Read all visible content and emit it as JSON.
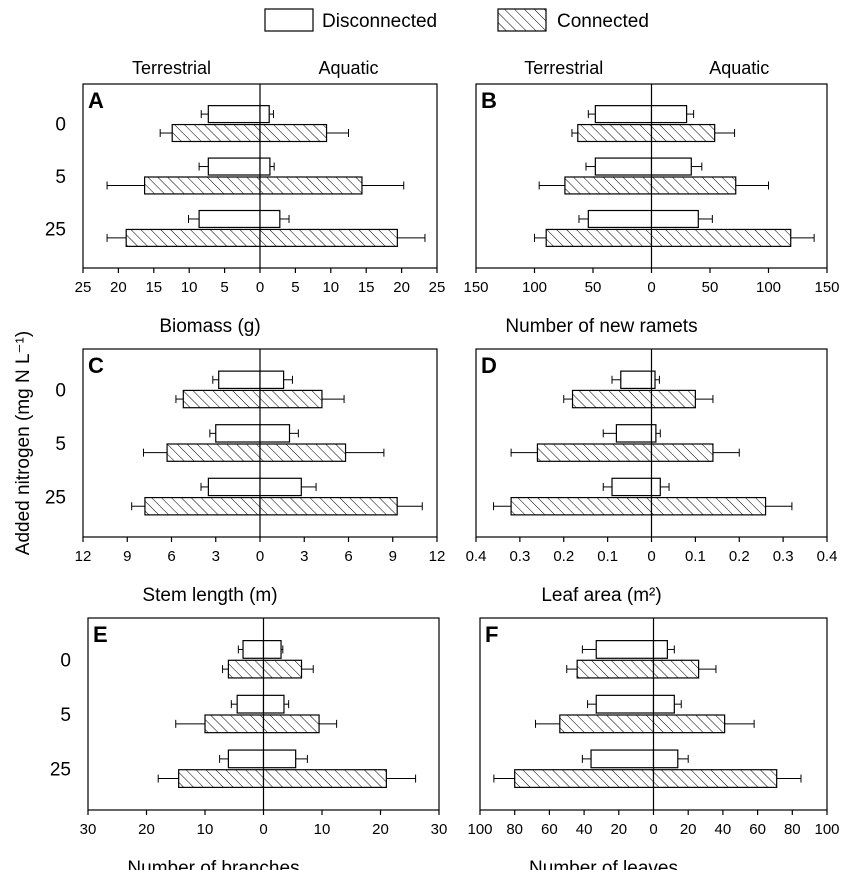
{
  "legend": {
    "disconnected": "Disconnected",
    "connected": "Connected"
  },
  "shared_ylabel": "Added nitrogen (mg N L⁻¹)",
  "sides": {
    "left": "Terrestrial",
    "right": "Aquatic"
  },
  "categories": [
    "0",
    "5",
    "25"
  ],
  "colors": {
    "disconnected_fill": "#ffffff",
    "connected_fill": "hatched",
    "stroke": "#000000"
  },
  "chart_data": [
    {
      "type": "bar",
      "panel": "A",
      "xlabel": "Biomass (g)",
      "xlim": [
        -25,
        25
      ],
      "ticks": [
        25,
        20,
        15,
        10,
        5,
        0,
        5,
        10,
        15,
        20,
        25
      ],
      "show_sides": true,
      "series": [
        {
          "name": "Disconnected",
          "left": [
            7.3,
            7.3,
            8.6
          ],
          "left_err": [
            1.0,
            1.3,
            1.5
          ],
          "right": [
            1.3,
            1.4,
            2.8
          ],
          "right_err": [
            0.6,
            0.6,
            1.3
          ]
        },
        {
          "name": "Connected",
          "left": [
            12.4,
            16.3,
            18.9
          ],
          "left_err": [
            1.7,
            5.3,
            2.7
          ],
          "right": [
            9.4,
            14.4,
            19.4
          ],
          "right_err": [
            3.1,
            5.9,
            3.9
          ]
        }
      ]
    },
    {
      "type": "bar",
      "panel": "B",
      "xlabel": "Number of new ramets",
      "xlim": [
        -150,
        150
      ],
      "ticks": [
        150,
        100,
        50,
        0,
        50,
        100,
        150
      ],
      "show_sides": true,
      "series": [
        {
          "name": "Disconnected",
          "left": [
            48,
            48,
            54
          ],
          "left_err": [
            6,
            8,
            8
          ],
          "right": [
            30,
            34,
            40
          ],
          "right_err": [
            6,
            9,
            12
          ]
        },
        {
          "name": "Connected",
          "left": [
            63,
            74,
            90
          ],
          "left_err": [
            5,
            22,
            10
          ],
          "right": [
            54,
            72,
            119
          ],
          "right_err": [
            17,
            28,
            20
          ]
        }
      ]
    },
    {
      "type": "bar",
      "panel": "C",
      "xlabel": "Stem length (m)",
      "xlim": [
        -12,
        12
      ],
      "ticks": [
        12,
        9,
        6,
        3,
        0,
        3,
        6,
        9,
        12
      ],
      "show_sides": false,
      "series": [
        {
          "name": "Disconnected",
          "left": [
            2.8,
            3.0,
            3.5
          ],
          "left_err": [
            0.4,
            0.4,
            0.5
          ],
          "right": [
            1.6,
            2.0,
            2.8
          ],
          "right_err": [
            0.6,
            0.6,
            1.0
          ]
        },
        {
          "name": "Connected",
          "left": [
            5.2,
            6.3,
            7.8
          ],
          "left_err": [
            0.5,
            1.6,
            0.9
          ],
          "right": [
            4.2,
            5.8,
            9.3
          ],
          "right_err": [
            1.5,
            2.6,
            1.7
          ]
        }
      ]
    },
    {
      "type": "bar",
      "panel": "D",
      "xlabel": "Leaf area (m²)",
      "xlim": [
        -0.4,
        0.4
      ],
      "ticks": [
        0.4,
        0.3,
        0.2,
        0.1,
        0,
        0.1,
        0.2,
        0.3,
        0.4
      ],
      "show_sides": false,
      "series": [
        {
          "name": "Disconnected",
          "left": [
            0.07,
            0.08,
            0.09
          ],
          "left_err": [
            0.02,
            0.03,
            0.02
          ],
          "right": [
            0.008,
            0.01,
            0.02
          ],
          "right_err": [
            0.01,
            0.01,
            0.02
          ]
        },
        {
          "name": "Connected",
          "left": [
            0.18,
            0.26,
            0.32
          ],
          "left_err": [
            0.02,
            0.06,
            0.04
          ],
          "right": [
            0.1,
            0.14,
            0.26
          ],
          "right_err": [
            0.04,
            0.06,
            0.06
          ]
        }
      ]
    },
    {
      "type": "bar",
      "panel": "E",
      "xlabel": "Number of branches",
      "xlim": [
        -30,
        30
      ],
      "ticks": [
        30,
        20,
        10,
        0,
        10,
        20,
        30
      ],
      "show_sides": false,
      "series": [
        {
          "name": "Disconnected",
          "left": [
            3.5,
            4.5,
            6.0
          ],
          "left_err": [
            0.8,
            1.0,
            1.5
          ],
          "right": [
            3.0,
            3.5,
            5.5
          ],
          "right_err": [
            0.3,
            0.8,
            2.0
          ]
        },
        {
          "name": "Connected",
          "left": [
            6.0,
            10.0,
            14.5
          ],
          "left_err": [
            1.0,
            5.0,
            3.5
          ],
          "right": [
            6.5,
            9.5,
            21.0
          ],
          "right_err": [
            2.0,
            3.0,
            5.0
          ]
        }
      ]
    },
    {
      "type": "bar",
      "panel": "F",
      "xlabel": "Number of leaves",
      "xlim": [
        -100,
        100
      ],
      "ticks": [
        100,
        80,
        60,
        40,
        20,
        0,
        20,
        40,
        60,
        80,
        100
      ],
      "show_sides": false,
      "series": [
        {
          "name": "Disconnected",
          "left": [
            33,
            33,
            36
          ],
          "left_err": [
            8,
            5,
            5
          ],
          "right": [
            8,
            12,
            14
          ],
          "right_err": [
            4,
            4,
            6
          ]
        },
        {
          "name": "Connected",
          "left": [
            44,
            54,
            80
          ],
          "left_err": [
            6,
            14,
            12
          ],
          "right": [
            26,
            41,
            71
          ],
          "right_err": [
            10,
            17,
            14
          ]
        }
      ]
    }
  ]
}
